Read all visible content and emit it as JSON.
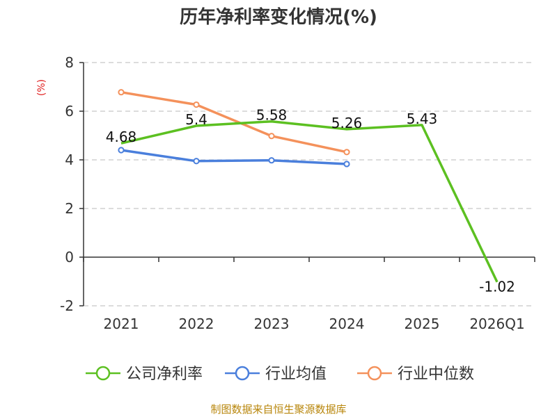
{
  "chart_data": {
    "type": "line",
    "title": "历年净利率变化情况(%)",
    "ylabel": "(%)",
    "categories": [
      "2021",
      "2022",
      "2023",
      "2024",
      "2025",
      "2026Q1"
    ],
    "ylim": [
      -2,
      8
    ],
    "yticks": [
      "-2",
      "0",
      "2",
      "4",
      "6",
      "8"
    ],
    "grid": true,
    "legend_position": "bottom",
    "series": [
      {
        "name": "公司净利率",
        "color": "#5cc021",
        "values": [
          4.68,
          5.4,
          5.58,
          5.26,
          5.43,
          -1.02
        ],
        "labels": [
          "4.68",
          "5.4",
          "5.58",
          "5.26",
          "5.43",
          "-1.02"
        ]
      },
      {
        "name": "行业均值",
        "color": "#4a7fdc",
        "values": [
          4.4,
          3.95,
          3.98,
          3.83,
          null,
          null
        ]
      },
      {
        "name": "行业中位数",
        "color": "#f4915b",
        "values": [
          6.78,
          6.27,
          4.98,
          4.32,
          null,
          null
        ]
      }
    ],
    "source": "制图数据来自恒生聚源数据库"
  }
}
